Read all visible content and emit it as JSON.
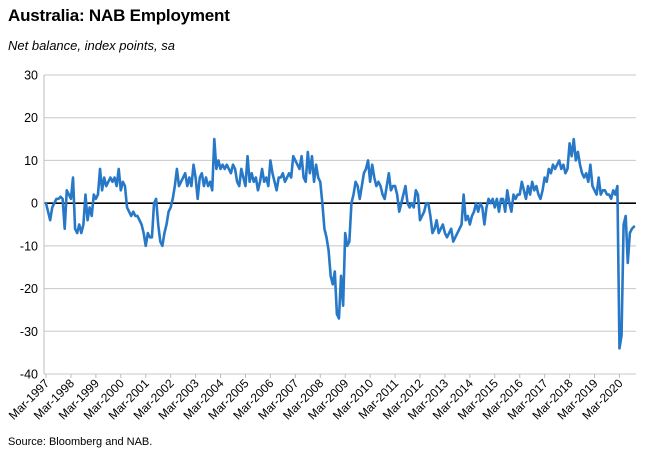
{
  "title": "Australia: NAB Employment",
  "subtitle": "Net balance, index points, sa",
  "source": "Source: Bloomberg and NAB.",
  "chart_data": {
    "type": "line",
    "title": "Australia: NAB Employment",
    "subtitle": "Net balance, index points, sa",
    "ylim": [
      -40,
      30
    ],
    "yticks": [
      -40,
      -30,
      -20,
      -10,
      0,
      10,
      20,
      30
    ],
    "grid": true,
    "legend": "none",
    "x_labels": [
      "Mar-1997",
      "Mar-1998",
      "Mar-1999",
      "Mar-2000",
      "Mar-2001",
      "Mar-2002",
      "Mar-2003",
      "Mar-2004",
      "Mar-2005",
      "Mar-2006",
      "Mar-2007",
      "Mar-2008",
      "Mar-2009",
      "Mar-2010",
      "Mar-2011",
      "Mar-2012",
      "Mar-2013",
      "Mar-2014",
      "Mar-2015",
      "Mar-2016",
      "Mar-2017",
      "Mar-2018",
      "Mar-2019",
      "Mar-2020"
    ],
    "series": [
      {
        "color": "#2878c8",
        "x_start": "Mar-1997",
        "frequency": "monthly",
        "values": [
          0,
          -2,
          -4,
          -1,
          0,
          1,
          1,
          1.5,
          1,
          -6,
          3,
          2,
          1,
          6,
          -6,
          -7,
          -5,
          -7,
          -5,
          2,
          -4,
          -1,
          -3,
          2,
          1,
          2,
          8,
          3,
          6,
          4,
          5,
          6,
          5,
          6,
          4,
          8,
          3,
          5,
          4,
          -1,
          -2,
          -3,
          -2,
          -3,
          -3,
          -4,
          -5,
          -7,
          -10,
          -7,
          -8,
          -8,
          0,
          1,
          -5,
          -9,
          -10,
          -7,
          -5,
          -2,
          -1,
          1,
          4,
          8,
          4,
          5,
          6,
          7,
          4,
          6,
          4,
          9,
          6,
          1,
          6,
          7,
          4,
          6,
          4,
          5,
          3,
          15,
          8,
          10,
          8,
          9,
          8,
          9,
          8,
          7,
          9,
          8,
          5,
          4,
          8,
          6,
          4,
          11,
          5,
          7,
          5,
          6,
          3,
          5,
          8,
          5,
          6,
          4,
          10,
          7,
          5,
          3,
          6,
          6,
          7,
          5,
          6,
          7,
          6,
          11,
          10,
          9,
          8,
          11,
          6,
          5,
          12,
          7,
          11,
          5,
          9,
          6,
          5,
          0,
          -6,
          -8,
          -11,
          -17,
          -19,
          -16,
          -26,
          -27,
          -17,
          -24,
          -7,
          -10,
          -9,
          0,
          2,
          5,
          4,
          1,
          4,
          7,
          8,
          10,
          5,
          9,
          6,
          4,
          5,
          4,
          2,
          1,
          4,
          7,
          3,
          4,
          4,
          2,
          -2,
          0,
          2,
          4,
          0,
          -1,
          0,
          -1,
          3,
          2,
          -4,
          -3,
          -2,
          0,
          0,
          -3,
          -7,
          -6,
          -4,
          -7,
          -6,
          -5,
          -7,
          -8,
          -7,
          -6,
          -9,
          -8,
          -7,
          -6,
          -5,
          2,
          -4,
          -3,
          -5,
          -3,
          -2,
          0,
          -2,
          0,
          -1,
          -5,
          -1,
          1,
          0,
          1,
          -1,
          1,
          -2,
          1,
          1,
          -2,
          3,
          0,
          -2,
          2,
          1,
          2,
          2,
          5,
          3,
          1,
          4,
          2,
          5,
          3,
          4,
          2,
          1,
          3,
          6,
          5,
          8,
          7,
          9,
          8,
          9,
          10,
          8,
          9,
          7,
          8,
          14,
          11,
          15,
          10,
          12,
          9,
          7,
          6,
          7,
          5,
          9,
          4,
          3,
          2,
          6,
          2,
          3,
          3,
          2,
          2,
          1,
          3,
          2,
          4,
          -34,
          -31,
          -5,
          -3,
          -14,
          -7,
          -6,
          -5.5
        ]
      }
    ]
  }
}
